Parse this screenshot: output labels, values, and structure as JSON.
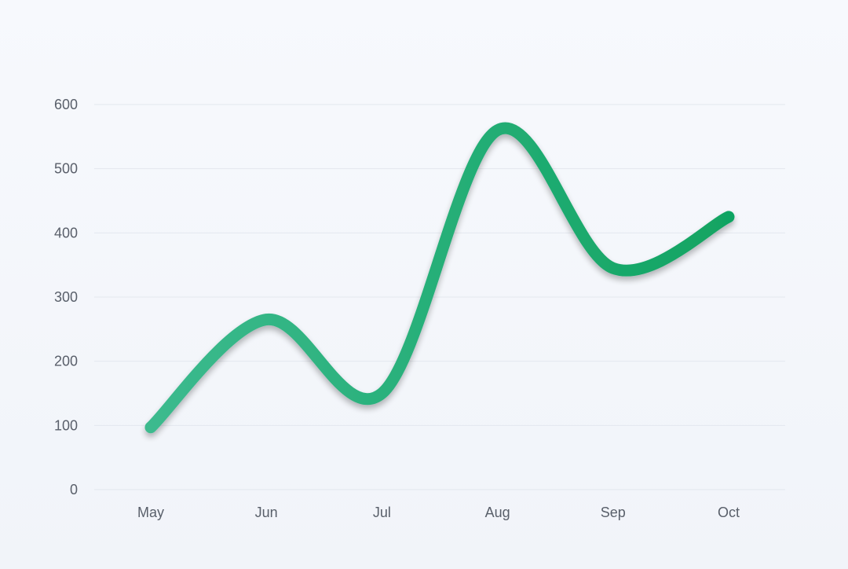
{
  "chart_data": {
    "type": "line",
    "smooth": true,
    "x": [
      "May",
      "Jun",
      "Jul",
      "Aug",
      "Sep",
      "Oct"
    ],
    "series": [
      {
        "values": [
          97,
          265,
          150,
          560,
          345,
          425
        ]
      }
    ],
    "ylim": [
      0,
      600
    ],
    "yticks": [
      0,
      100,
      200,
      300,
      400,
      500,
      600
    ],
    "grid": true,
    "legend": "none",
    "colors": {
      "line_start": "#3cba8e",
      "line_end": "#11a462",
      "shadow": "#1f8a5e",
      "grid": "#e3e7ee",
      "tick_text": "#595f6a"
    }
  }
}
